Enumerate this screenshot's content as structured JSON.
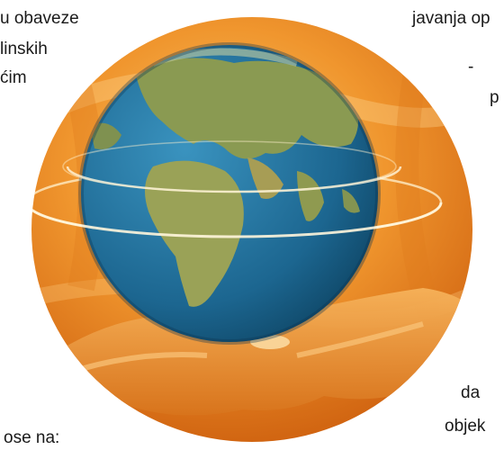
{
  "text_fragments": {
    "top_left_line1": "u obaveze",
    "top_left_line2": "linskih",
    "top_left_line3": "ćim",
    "top_right_line1": "javanja op",
    "right_dash": "-",
    "right_p": "p",
    "bottom_right_line1": "da",
    "bottom_right_line2": "objek",
    "bottom_left_line1": "ose na:"
  },
  "illustration": {
    "icon": "globe-in-hand-icon",
    "colors": {
      "background_light": "#f6b04a",
      "background_dark": "#d0620c",
      "ocean": "#1f73a0",
      "land": "#8a9a52",
      "ring": "#fff1cf"
    }
  }
}
